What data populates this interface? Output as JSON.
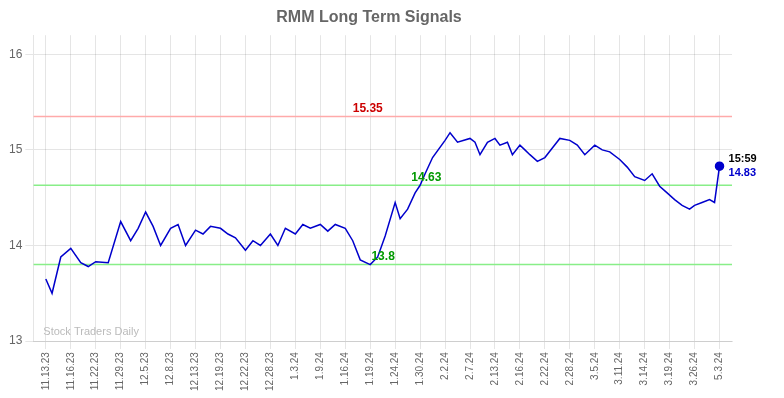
{
  "chart_data": {
    "type": "line",
    "title": "RMM Long Term Signals",
    "color": "#0000cc",
    "x": [
      0.0,
      0.25,
      0.6,
      1.0,
      1.4,
      1.7,
      2.0,
      2.5,
      3.0,
      3.4,
      3.7,
      4.0,
      4.3,
      4.6,
      5.0,
      5.3,
      5.6,
      6.0,
      6.3,
      6.6,
      7.0,
      7.3,
      7.6,
      8.0,
      8.3,
      8.6,
      9.0,
      9.3,
      9.6,
      10.0,
      10.3,
      10.6,
      11.0,
      11.3,
      11.6,
      12.0,
      12.3,
      12.6,
      13.0,
      13.3,
      13.6,
      14.0,
      14.2,
      14.5,
      14.8,
      15.0,
      15.2,
      15.5,
      16.0,
      16.2,
      16.5,
      17.0,
      17.2,
      17.4,
      17.7,
      18.0,
      18.2,
      18.5,
      18.7,
      19.0,
      19.2,
      19.4,
      19.7,
      20.0,
      20.3,
      20.6,
      21.0,
      21.3,
      21.6,
      22.0,
      22.3,
      22.6,
      23.0,
      23.3,
      23.6,
      24.0,
      24.3,
      24.6,
      24.9,
      25.2,
      25.5,
      25.8,
      26.0,
      26.3,
      26.6,
      26.8,
      27.0
    ],
    "values": [
      13.65,
      13.5,
      13.88,
      13.97,
      13.82,
      13.78,
      13.83,
      13.82,
      14.25,
      14.05,
      14.18,
      14.35,
      14.2,
      14.0,
      14.18,
      14.22,
      14.0,
      14.16,
      14.12,
      14.2,
      14.18,
      14.12,
      14.08,
      13.95,
      14.05,
      14.0,
      14.12,
      14.0,
      14.18,
      14.12,
      14.22,
      14.18,
      14.22,
      14.15,
      14.22,
      14.18,
      14.05,
      13.85,
      13.8,
      13.88,
      14.1,
      14.45,
      14.28,
      14.38,
      14.55,
      14.63,
      14.75,
      14.92,
      15.1,
      15.18,
      15.08,
      15.12,
      15.08,
      14.95,
      15.08,
      15.12,
      15.05,
      15.08,
      14.95,
      15.05,
      15.0,
      14.95,
      14.88,
      14.92,
      15.02,
      15.12,
      15.1,
      15.05,
      14.95,
      15.05,
      15.0,
      14.98,
      14.9,
      14.82,
      14.72,
      14.68,
      14.75,
      14.62,
      14.55,
      14.48,
      14.42,
      14.38,
      14.42,
      14.45,
      14.48,
      14.45,
      14.83
    ],
    "xlim": [
      -0.5,
      27.5
    ],
    "xticks": [
      {
        "value": 0,
        "label": "11.13.23"
      },
      {
        "value": 1,
        "label": "11.16.23"
      },
      {
        "value": 2,
        "label": "11.22.23"
      },
      {
        "value": 3,
        "label": "11.29.23"
      },
      {
        "value": 4,
        "label": "12.5.23"
      },
      {
        "value": 5,
        "label": "12.8.23"
      },
      {
        "value": 6,
        "label": "12.13.23"
      },
      {
        "value": 7,
        "label": "12.19.23"
      },
      {
        "value": 8,
        "label": "12.22.23"
      },
      {
        "value": 9,
        "label": "12.28.23"
      },
      {
        "value": 10,
        "label": "1.3.24"
      },
      {
        "value": 11,
        "label": "1.9.24"
      },
      {
        "value": 12,
        "label": "1.16.24"
      },
      {
        "value": 13,
        "label": "1.19.24"
      },
      {
        "value": 14,
        "label": "1.24.24"
      },
      {
        "value": 15,
        "label": "1.30.24"
      },
      {
        "value": 16,
        "label": "2.2.24"
      },
      {
        "value": 17,
        "label": "2.7.24"
      },
      {
        "value": 18,
        "label": "2.13.24"
      },
      {
        "value": 19,
        "label": "2.16.24"
      },
      {
        "value": 20,
        "label": "2.22.24"
      },
      {
        "value": 21,
        "label": "2.28.24"
      },
      {
        "value": 22,
        "label": "3.5.24"
      },
      {
        "value": 23,
        "label": "3.11.24"
      },
      {
        "value": 24,
        "label": "3.14.24"
      },
      {
        "value": 25,
        "label": "3.19.24"
      },
      {
        "value": 26,
        "label": "3.26.24"
      },
      {
        "value": 27,
        "label": "5.3.24"
      }
    ],
    "ylim": [
      13.0,
      16.2
    ],
    "yticks": [
      13,
      14,
      15,
      16
    ],
    "grid": true,
    "reference_lines": [
      {
        "y": 15.35,
        "color": "#ffaaaa",
        "label": "15.35",
        "label_color": "#cc0000"
      },
      {
        "y": 14.63,
        "color": "#88ee88",
        "label": "14.63",
        "label_color": "#009900"
      },
      {
        "y": 13.8,
        "color": "#88ee88",
        "label": "13.8",
        "label_color": "#009900"
      }
    ],
    "annotations": [
      {
        "text": "15:59",
        "color": "#000000"
      },
      {
        "text": "14.83",
        "color": "#0000cc"
      }
    ],
    "watermark": {
      "text": "Stock Traders Daily",
      "color": "#bbbbbb"
    }
  }
}
